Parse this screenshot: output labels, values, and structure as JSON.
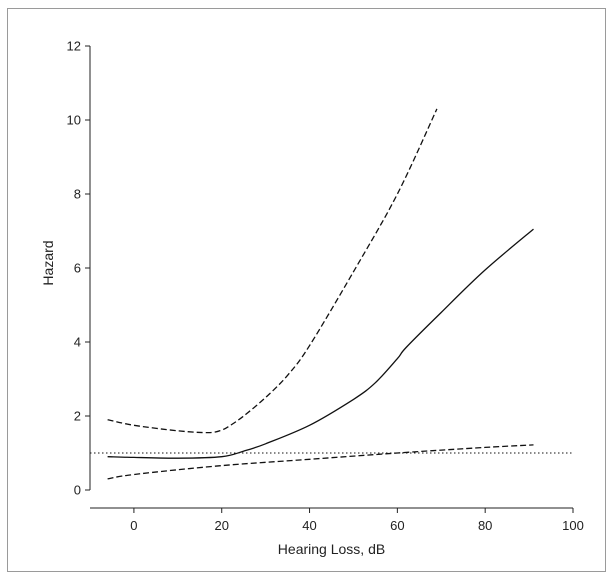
{
  "chart_data": {
    "type": "line",
    "title": "",
    "xlabel": "Hearing Loss, dB",
    "ylabel": "Hazard",
    "xlim": [
      -10,
      100
    ],
    "ylim": [
      0,
      12
    ],
    "xticks": [
      0,
      20,
      40,
      60,
      80,
      100
    ],
    "yticks": [
      0,
      2,
      4,
      6,
      8,
      10,
      12
    ],
    "grid": false,
    "legend": "none",
    "series": [
      {
        "style": "solid",
        "color": "#111111",
        "x": [
          -6,
          0,
          10,
          20,
          25,
          30,
          40,
          50,
          55,
          60,
          62,
          70,
          80,
          91
        ],
        "y": [
          0.9,
          0.88,
          0.86,
          0.9,
          1.05,
          1.25,
          1.75,
          2.45,
          2.9,
          3.55,
          3.85,
          4.8,
          5.95,
          7.05
        ]
      },
      {
        "style": "dashed",
        "color": "#111111",
        "x": [
          -6,
          0,
          10,
          17,
          20,
          22,
          25,
          30,
          35,
          40,
          50,
          60,
          69
        ],
        "y": [
          1.9,
          1.75,
          1.6,
          1.55,
          1.62,
          1.75,
          2.0,
          2.5,
          3.1,
          3.9,
          5.9,
          8.0,
          10.3
        ]
      },
      {
        "style": "dashed",
        "color": "#111111",
        "x": [
          -6,
          0,
          20,
          40,
          60,
          80,
          91
        ],
        "y": [
          0.3,
          0.42,
          0.66,
          0.83,
          1.0,
          1.15,
          1.22
        ]
      },
      {
        "style": "dotted",
        "color": "#111111",
        "x": [
          -10,
          100
        ],
        "y": [
          1.0,
          1.0
        ]
      }
    ]
  }
}
